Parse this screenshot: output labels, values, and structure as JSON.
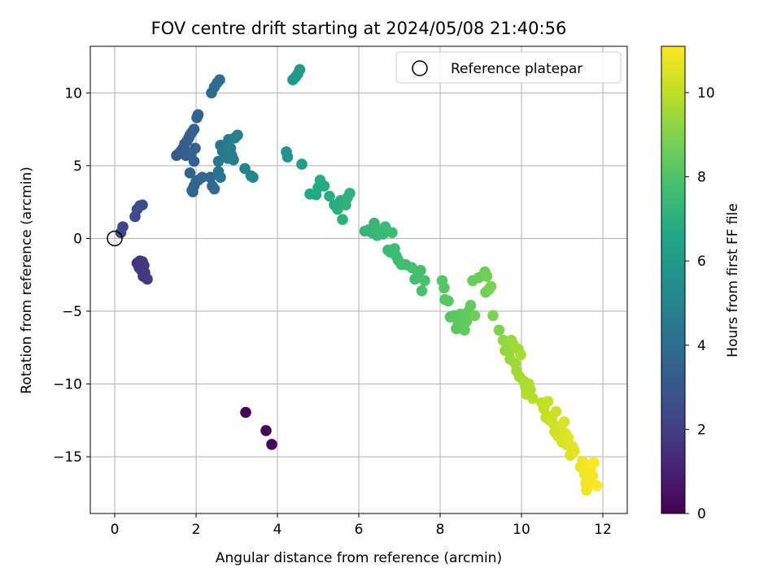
{
  "chart_data": {
    "type": "scatter",
    "title": "FOV centre drift starting at 2024/05/08 21:40:56",
    "xlabel": "Angular distance from reference (arcmin)",
    "ylabel": "Rotation from reference (arcmin)",
    "xlim": [
      -0.6,
      12.6
    ],
    "ylim": [
      -18.9,
      13.2
    ],
    "xticks": [
      0,
      2,
      4,
      6,
      8,
      10,
      12
    ],
    "yticks": [
      -15,
      -10,
      -5,
      0,
      5,
      10
    ],
    "grid": true,
    "legend": {
      "position": "top-right",
      "entries": [
        "Reference platepar"
      ]
    },
    "reference_point": {
      "x": 0,
      "y": 0
    },
    "colorbar": {
      "label": "Hours from first FF file",
      "colormap": "viridis",
      "range": [
        0,
        11.1
      ],
      "ticks": [
        0,
        2,
        4,
        6,
        8,
        10
      ]
    },
    "columns": [
      "x",
      "y",
      "hours"
    ],
    "points": [
      [
        3.22,
        -11.95,
        0.05
      ],
      [
        3.72,
        -13.2,
        0.15
      ],
      [
        3.86,
        -14.15,
        0.25
      ],
      [
        0.55,
        -1.7,
        1.6
      ],
      [
        0.62,
        -1.55,
        1.65
      ],
      [
        0.68,
        -1.6,
        1.7
      ],
      [
        0.72,
        -1.85,
        1.72
      ],
      [
        0.6,
        -2.0,
        1.75
      ],
      [
        0.66,
        -2.2,
        1.78
      ],
      [
        0.74,
        -2.35,
        1.8
      ],
      [
        0.7,
        -2.6,
        1.82
      ],
      [
        0.8,
        -2.8,
        1.85
      ],
      [
        0.62,
        -1.9,
        1.76
      ],
      [
        0.15,
        0.4,
        2.3
      ],
      [
        0.2,
        0.8,
        2.35
      ],
      [
        0.5,
        1.5,
        2.5
      ],
      [
        0.55,
        2.0,
        2.55
      ],
      [
        0.62,
        2.25,
        2.6
      ],
      [
        0.68,
        2.3,
        2.65
      ],
      [
        1.52,
        5.7,
        3.1
      ],
      [
        1.58,
        5.85,
        3.12
      ],
      [
        1.63,
        6.0,
        3.15
      ],
      [
        1.68,
        6.2,
        3.18
      ],
      [
        1.72,
        6.5,
        3.2
      ],
      [
        1.75,
        5.7,
        3.22
      ],
      [
        1.78,
        6.7,
        3.25
      ],
      [
        1.8,
        5.9,
        3.27
      ],
      [
        1.82,
        6.9,
        3.3
      ],
      [
        1.85,
        7.1,
        3.32
      ],
      [
        1.88,
        5.8,
        3.35
      ],
      [
        1.9,
        7.3,
        3.37
      ],
      [
        1.95,
        7.5,
        3.4
      ],
      [
        1.98,
        6.2,
        3.42
      ],
      [
        2.02,
        8.3,
        3.5
      ],
      [
        2.05,
        8.5,
        3.52
      ],
      [
        1.95,
        5.3,
        3.45
      ],
      [
        1.85,
        4.5,
        3.55
      ],
      [
        1.9,
        3.3,
        3.6
      ],
      [
        1.95,
        3.6,
        3.62
      ],
      [
        2.0,
        3.9,
        3.65
      ],
      [
        1.92,
        3.2,
        3.67
      ],
      [
        2.05,
        4.0,
        3.7
      ],
      [
        2.15,
        4.2,
        3.72
      ],
      [
        2.35,
        4.2,
        3.75
      ],
      [
        2.4,
        3.6,
        3.78
      ],
      [
        2.45,
        3.4,
        3.8
      ],
      [
        2.38,
        10.0,
        3.9
      ],
      [
        2.45,
        10.4,
        3.95
      ],
      [
        2.52,
        10.7,
        4.0
      ],
      [
        2.58,
        10.9,
        4.05
      ],
      [
        2.55,
        4.6,
        4.2
      ],
      [
        2.6,
        4.2,
        4.25
      ],
      [
        2.55,
        5.3,
        4.3
      ],
      [
        2.6,
        6.4,
        4.35
      ],
      [
        2.65,
        6.0,
        4.4
      ],
      [
        2.7,
        5.6,
        4.45
      ],
      [
        2.75,
        6.1,
        4.5
      ],
      [
        2.78,
        5.5,
        4.55
      ],
      [
        2.8,
        6.8,
        4.6
      ],
      [
        2.85,
        6.2,
        4.65
      ],
      [
        2.88,
        5.7,
        4.7
      ],
      [
        2.92,
        5.4,
        4.75
      ],
      [
        2.95,
        6.9,
        4.8
      ],
      [
        3.02,
        7.1,
        4.85
      ],
      [
        3.2,
        4.8,
        4.95
      ],
      [
        3.35,
        4.3,
        5.0
      ],
      [
        3.4,
        4.2,
        5.05
      ],
      [
        4.22,
        5.95,
        5.6
      ],
      [
        4.25,
        5.6,
        5.65
      ],
      [
        4.38,
        10.9,
        5.9
      ],
      [
        4.45,
        11.1,
        5.95
      ],
      [
        4.5,
        11.3,
        6.0
      ],
      [
        4.55,
        11.6,
        6.05
      ],
      [
        4.6,
        5.1,
        6.2
      ],
      [
        4.8,
        3.05,
        6.6
      ],
      [
        4.95,
        3.0,
        6.65
      ],
      [
        5.0,
        3.5,
        6.7
      ],
      [
        5.05,
        4.0,
        6.75
      ],
      [
        5.15,
        3.6,
        6.8
      ],
      [
        5.28,
        2.9,
        6.85
      ],
      [
        5.4,
        2.3,
        6.9
      ],
      [
        5.48,
        2.0,
        6.95
      ],
      [
        5.55,
        2.6,
        7.0
      ],
      [
        5.6,
        1.3,
        7.05
      ],
      [
        5.68,
        2.3,
        7.1
      ],
      [
        5.72,
        2.8,
        7.15
      ],
      [
        5.78,
        3.1,
        7.2
      ],
      [
        6.15,
        0.5,
        7.3
      ],
      [
        6.25,
        0.6,
        7.32
      ],
      [
        6.32,
        0.4,
        7.35
      ],
      [
        6.38,
        1.05,
        7.38
      ],
      [
        6.45,
        0.2,
        7.4
      ],
      [
        6.55,
        0.6,
        7.42
      ],
      [
        6.6,
        0.3,
        7.45
      ],
      [
        6.65,
        0.8,
        7.48
      ],
      [
        6.72,
        -0.8,
        7.5
      ],
      [
        6.78,
        -0.95,
        7.52
      ],
      [
        6.82,
        0.4,
        7.55
      ],
      [
        6.88,
        -0.7,
        7.58
      ],
      [
        6.92,
        -1.2,
        7.6
      ],
      [
        6.97,
        -1.5,
        7.62
      ],
      [
        7.05,
        -1.8,
        7.65
      ],
      [
        7.15,
        -1.8,
        7.68
      ],
      [
        7.3,
        -2.0,
        7.7
      ],
      [
        7.38,
        -2.8,
        7.75
      ],
      [
        7.45,
        -2.5,
        7.78
      ],
      [
        7.52,
        -2.2,
        7.8
      ],
      [
        7.55,
        -3.6,
        7.82
      ],
      [
        7.62,
        -2.9,
        7.85
      ],
      [
        8.05,
        -2.9,
        8.1
      ],
      [
        8.1,
        -3.4,
        8.12
      ],
      [
        8.12,
        -4.2,
        8.15
      ],
      [
        8.2,
        -4.3,
        8.18
      ],
      [
        8.25,
        -5.4,
        8.2
      ],
      [
        8.35,
        -5.3,
        8.22
      ],
      [
        8.4,
        -6.2,
        8.25
      ],
      [
        8.45,
        -5.8,
        8.28
      ],
      [
        8.5,
        -5.2,
        8.3
      ],
      [
        8.6,
        -6.3,
        8.35
      ],
      [
        8.65,
        -5.7,
        8.38
      ],
      [
        8.7,
        -5.0,
        8.4
      ],
      [
        8.75,
        -4.6,
        8.45
      ],
      [
        8.8,
        -2.9,
        8.5
      ],
      [
        8.85,
        -5.3,
        8.55
      ],
      [
        8.95,
        -2.7,
        8.6
      ],
      [
        9.1,
        -2.3,
        8.65
      ],
      [
        9.15,
        -2.6,
        8.7
      ],
      [
        9.12,
        -3.7,
        8.75
      ],
      [
        9.2,
        -3.5,
        8.8
      ],
      [
        9.25,
        -3.3,
        8.85
      ],
      [
        9.3,
        -5.3,
        8.9
      ],
      [
        9.45,
        -6.3,
        8.95
      ],
      [
        9.55,
        -7.0,
        9.2
      ],
      [
        9.6,
        -7.7,
        9.25
      ],
      [
        9.65,
        -7.4,
        9.3
      ],
      [
        9.7,
        -7.8,
        9.35
      ],
      [
        9.72,
        -8.3,
        9.38
      ],
      [
        9.75,
        -7.0,
        9.4
      ],
      [
        9.8,
        -7.3,
        9.45
      ],
      [
        9.85,
        -8.6,
        9.5
      ],
      [
        9.88,
        -9.1,
        9.55
      ],
      [
        9.92,
        -7.6,
        9.58
      ],
      [
        9.95,
        -9.5,
        9.6
      ],
      [
        9.98,
        -8.0,
        9.62
      ],
      [
        10.05,
        -9.8,
        9.65
      ],
      [
        10.1,
        -10.2,
        9.7
      ],
      [
        10.12,
        -10.7,
        9.75
      ],
      [
        10.18,
        -10.0,
        9.78
      ],
      [
        10.22,
        -10.4,
        9.82
      ],
      [
        10.28,
        -11.0,
        9.85
      ],
      [
        10.5,
        -11.3,
        10.0
      ],
      [
        10.55,
        -11.7,
        10.05
      ],
      [
        10.6,
        -12.3,
        10.1
      ],
      [
        10.65,
        -11.2,
        10.12
      ],
      [
        10.7,
        -12.5,
        10.15
      ],
      [
        10.75,
        -12.2,
        10.2
      ],
      [
        10.8,
        -12.8,
        10.25
      ],
      [
        10.82,
        -13.3,
        10.28
      ],
      [
        10.85,
        -11.9,
        10.3
      ],
      [
        10.9,
        -13.6,
        10.35
      ],
      [
        10.95,
        -13.0,
        10.38
      ],
      [
        11.0,
        -14.0,
        10.4
      ],
      [
        11.05,
        -12.6,
        10.45
      ],
      [
        11.08,
        -13.4,
        10.5
      ],
      [
        11.12,
        -14.2,
        10.52
      ],
      [
        11.15,
        -13.7,
        10.55
      ],
      [
        11.2,
        -14.9,
        10.58
      ],
      [
        11.25,
        -14.3,
        10.6
      ],
      [
        11.3,
        -14.6,
        10.65
      ],
      [
        11.45,
        -15.7,
        10.8
      ],
      [
        11.5,
        -15.3,
        10.82
      ],
      [
        11.55,
        -16.2,
        10.85
      ],
      [
        11.58,
        -16.8,
        10.88
      ],
      [
        11.6,
        -17.3,
        10.9
      ],
      [
        11.62,
        -15.6,
        10.92
      ],
      [
        11.65,
        -16.5,
        10.95
      ],
      [
        11.7,
        -15.9,
        10.98
      ],
      [
        11.72,
        -16.8,
        11.0
      ],
      [
        11.75,
        -16.3,
        11.02
      ],
      [
        11.78,
        -15.4,
        11.05
      ],
      [
        11.85,
        -17.0,
        11.08
      ]
    ]
  }
}
